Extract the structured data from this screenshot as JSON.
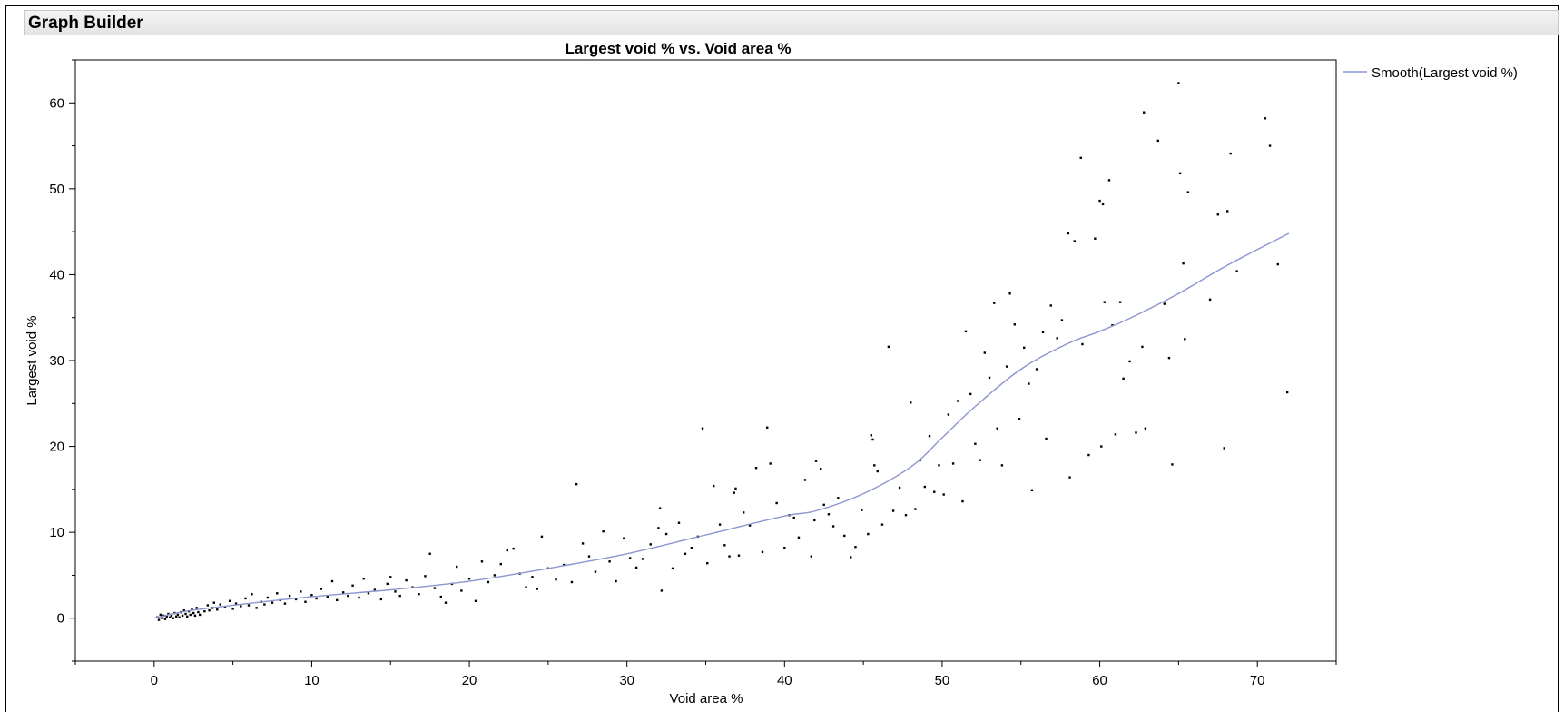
{
  "window": {
    "title": "Graph Builder"
  },
  "colors": {
    "smooth": "#8c96d0",
    "points": "#000000",
    "axis": "#000000"
  },
  "chart_data": {
    "type": "scatter",
    "title": "Largest void % vs. Void area %",
    "xlabel": "Void area %",
    "ylabel": "Largest void %",
    "xlim": [
      -5,
      75
    ],
    "ylim": [
      -5,
      65
    ],
    "xticks": [
      0,
      10,
      20,
      30,
      40,
      50,
      60,
      70
    ],
    "yticks": [
      0,
      10,
      20,
      30,
      40,
      50,
      60
    ],
    "legend": {
      "placement": "top-right",
      "entries": [
        "Smooth(Largest void %)"
      ]
    },
    "series": [
      {
        "name": "Smooth(Largest void %)",
        "kind": "line",
        "x": [
          0,
          2,
          5,
          10,
          15,
          20,
          25,
          30,
          35,
          40,
          42,
          45,
          48,
          50,
          52,
          55,
          58,
          60,
          62,
          65,
          68,
          72
        ],
        "y": [
          0,
          0.8,
          1.5,
          2.5,
          3.3,
          4.3,
          5.8,
          7.5,
          9.7,
          11.9,
          12.5,
          14.5,
          17.6,
          21,
          24.5,
          29,
          32,
          33.4,
          35,
          37.8,
          41,
          44.8
        ]
      },
      {
        "name": "points",
        "kind": "scatter",
        "points": [
          [
            0.2,
            0.1
          ],
          [
            0.3,
            -0.2
          ],
          [
            0.4,
            0.4
          ],
          [
            0.5,
            0.0
          ],
          [
            0.6,
            0.3
          ],
          [
            0.7,
            -0.1
          ],
          [
            0.8,
            0.2
          ],
          [
            0.9,
            0.5
          ],
          [
            1.0,
            0.1
          ],
          [
            1.1,
            0.3
          ],
          [
            1.2,
            0.0
          ],
          [
            1.3,
            0.6
          ],
          [
            1.4,
            0.2
          ],
          [
            1.5,
            0.4
          ],
          [
            1.6,
            0.1
          ],
          [
            1.7,
            0.7
          ],
          [
            1.8,
            0.3
          ],
          [
            1.9,
            0.9
          ],
          [
            2.0,
            0.5
          ],
          [
            2.1,
            0.2
          ],
          [
            2.2,
            0.8
          ],
          [
            2.3,
            0.4
          ],
          [
            2.4,
            1.0
          ],
          [
            2.5,
            0.6
          ],
          [
            2.6,
            0.3
          ],
          [
            2.7,
            1.2
          ],
          [
            2.8,
            0.7
          ],
          [
            2.9,
            0.4
          ],
          [
            3.0,
            1.1
          ],
          [
            3.2,
            0.8
          ],
          [
            3.4,
            1.5
          ],
          [
            3.5,
            0.9
          ],
          [
            3.7,
            1.2
          ],
          [
            3.8,
            1.8
          ],
          [
            4.0,
            1.0
          ],
          [
            4.2,
            1.6
          ],
          [
            4.5,
            1.3
          ],
          [
            4.8,
            2.0
          ],
          [
            5.0,
            1.1
          ],
          [
            5.2,
            1.7
          ],
          [
            5.5,
            1.4
          ],
          [
            5.8,
            2.3
          ],
          [
            6.0,
            1.5
          ],
          [
            6.2,
            2.8
          ],
          [
            6.5,
            1.2
          ],
          [
            6.8,
            1.9
          ],
          [
            7.0,
            1.6
          ],
          [
            7.2,
            2.4
          ],
          [
            7.5,
            1.8
          ],
          [
            7.8,
            2.9
          ],
          [
            8.0,
            2.1
          ],
          [
            8.3,
            1.7
          ],
          [
            8.6,
            2.6
          ],
          [
            9.0,
            2.2
          ],
          [
            9.3,
            3.1
          ],
          [
            9.6,
            1.9
          ],
          [
            10.0,
            2.7
          ],
          [
            10.3,
            2.3
          ],
          [
            10.6,
            3.4
          ],
          [
            11.0,
            2.5
          ],
          [
            11.3,
            4.3
          ],
          [
            11.6,
            2.1
          ],
          [
            12.0,
            3.0
          ],
          [
            12.3,
            2.6
          ],
          [
            12.6,
            3.8
          ],
          [
            13.0,
            2.4
          ],
          [
            13.3,
            4.6
          ],
          [
            13.6,
            2.9
          ],
          [
            14.0,
            3.3
          ],
          [
            14.4,
            2.2
          ],
          [
            14.8,
            4.0
          ],
          [
            15.0,
            4.8
          ],
          [
            15.3,
            3.1
          ],
          [
            15.6,
            2.6
          ],
          [
            16.0,
            4.4
          ],
          [
            16.4,
            3.6
          ],
          [
            16.8,
            2.8
          ],
          [
            17.2,
            4.9
          ],
          [
            17.5,
            7.5
          ],
          [
            17.8,
            3.5
          ],
          [
            18.2,
            2.5
          ],
          [
            18.5,
            1.8
          ],
          [
            18.9,
            4.0
          ],
          [
            19.2,
            6.0
          ],
          [
            19.5,
            3.2
          ],
          [
            20.0,
            4.6
          ],
          [
            20.4,
            2.0
          ],
          [
            20.8,
            6.6
          ],
          [
            21.2,
            4.2
          ],
          [
            21.6,
            5.0
          ],
          [
            22.0,
            6.3
          ],
          [
            22.4,
            7.9
          ],
          [
            22.8,
            8.1
          ],
          [
            23.2,
            5.2
          ],
          [
            23.6,
            3.6
          ],
          [
            24.0,
            4.8
          ],
          [
            24.3,
            3.4
          ],
          [
            24.6,
            9.5
          ],
          [
            25.0,
            5.8
          ],
          [
            25.5,
            4.5
          ],
          [
            26.0,
            6.2
          ],
          [
            26.5,
            4.2
          ],
          [
            26.8,
            15.6
          ],
          [
            27.2,
            8.7
          ],
          [
            27.6,
            7.2
          ],
          [
            28.0,
            5.4
          ],
          [
            28.5,
            10.1
          ],
          [
            28.9,
            6.6
          ],
          [
            29.3,
            4.3
          ],
          [
            29.8,
            9.3
          ],
          [
            30.2,
            7.0
          ],
          [
            30.6,
            5.9
          ],
          [
            31.0,
            6.9
          ],
          [
            31.5,
            8.6
          ],
          [
            32.0,
            10.5
          ],
          [
            32.1,
            12.8
          ],
          [
            32.2,
            3.2
          ],
          [
            32.5,
            9.8
          ],
          [
            32.9,
            5.8
          ],
          [
            33.3,
            11.1
          ],
          [
            33.7,
            7.5
          ],
          [
            34.1,
            8.2
          ],
          [
            34.5,
            9.5
          ],
          [
            34.8,
            22.1
          ],
          [
            35.1,
            6.4
          ],
          [
            35.5,
            15.4
          ],
          [
            35.9,
            10.9
          ],
          [
            36.2,
            8.5
          ],
          [
            36.5,
            7.2
          ],
          [
            36.8,
            14.6
          ],
          [
            36.9,
            15.1
          ],
          [
            37.1,
            7.3
          ],
          [
            37.4,
            12.3
          ],
          [
            37.8,
            10.8
          ],
          [
            38.2,
            17.5
          ],
          [
            38.6,
            7.7
          ],
          [
            38.9,
            22.2
          ],
          [
            39.1,
            18.0
          ],
          [
            39.5,
            13.4
          ],
          [
            40.0,
            8.2
          ],
          [
            40.3,
            12.0
          ],
          [
            40.6,
            11.7
          ],
          [
            40.9,
            9.4
          ],
          [
            41.3,
            16.1
          ],
          [
            41.7,
            7.2
          ],
          [
            41.9,
            11.4
          ],
          [
            42.0,
            18.3
          ],
          [
            42.3,
            17.4
          ],
          [
            42.5,
            13.2
          ],
          [
            42.8,
            12.1
          ],
          [
            43.1,
            10.7
          ],
          [
            43.4,
            14.0
          ],
          [
            43.8,
            9.6
          ],
          [
            44.2,
            7.1
          ],
          [
            44.5,
            8.3
          ],
          [
            44.9,
            12.6
          ],
          [
            45.3,
            9.8
          ],
          [
            45.5,
            21.3
          ],
          [
            45.6,
            20.8
          ],
          [
            45.7,
            17.8
          ],
          [
            45.9,
            17.1
          ],
          [
            46.2,
            10.9
          ],
          [
            46.6,
            31.6
          ],
          [
            46.9,
            12.5
          ],
          [
            47.3,
            15.2
          ],
          [
            47.7,
            12.0
          ],
          [
            48.0,
            25.1
          ],
          [
            48.3,
            12.7
          ],
          [
            48.6,
            18.4
          ],
          [
            48.9,
            15.3
          ],
          [
            49.2,
            21.2
          ],
          [
            49.5,
            14.7
          ],
          [
            49.8,
            17.8
          ],
          [
            50.1,
            14.4
          ],
          [
            50.4,
            23.7
          ],
          [
            50.7,
            18.0
          ],
          [
            51.0,
            25.3
          ],
          [
            51.3,
            13.6
          ],
          [
            51.5,
            33.4
          ],
          [
            51.8,
            26.1
          ],
          [
            52.1,
            20.3
          ],
          [
            52.4,
            18.4
          ],
          [
            52.7,
            30.9
          ],
          [
            53.0,
            28.0
          ],
          [
            53.3,
            36.7
          ],
          [
            53.5,
            22.1
          ],
          [
            53.8,
            17.8
          ],
          [
            54.1,
            29.3
          ],
          [
            54.3,
            37.8
          ],
          [
            54.6,
            34.2
          ],
          [
            54.9,
            23.2
          ],
          [
            55.2,
            31.5
          ],
          [
            55.5,
            27.3
          ],
          [
            55.7,
            14.9
          ],
          [
            56.0,
            29.0
          ],
          [
            56.4,
            33.3
          ],
          [
            56.6,
            20.9
          ],
          [
            56.9,
            36.4
          ],
          [
            57.3,
            32.6
          ],
          [
            57.6,
            34.7
          ],
          [
            58.0,
            44.8
          ],
          [
            58.1,
            16.4
          ],
          [
            58.4,
            43.9
          ],
          [
            58.8,
            53.6
          ],
          [
            58.9,
            31.9
          ],
          [
            59.3,
            19.0
          ],
          [
            59.7,
            44.2
          ],
          [
            60.0,
            48.6
          ],
          [
            60.1,
            20.0
          ],
          [
            60.3,
            36.8
          ],
          [
            60.6,
            51.0
          ],
          [
            60.8,
            34.1
          ],
          [
            61.0,
            21.4
          ],
          [
            61.3,
            36.8
          ],
          [
            61.5,
            27.9
          ],
          [
            61.9,
            29.9
          ],
          [
            62.3,
            21.6
          ],
          [
            62.7,
            31.6
          ],
          [
            62.8,
            58.9
          ],
          [
            62.9,
            22.1
          ],
          [
            63.7,
            55.6
          ],
          [
            64.1,
            36.6
          ],
          [
            64.4,
            30.3
          ],
          [
            64.6,
            17.9
          ],
          [
            65.0,
            62.3
          ],
          [
            65.1,
            51.8
          ],
          [
            65.3,
            41.3
          ],
          [
            65.4,
            32.5
          ],
          [
            65.6,
            49.6
          ],
          [
            67.0,
            37.1
          ],
          [
            67.5,
            47.0
          ],
          [
            67.9,
            19.8
          ],
          [
            68.3,
            54.1
          ],
          [
            68.7,
            40.4
          ],
          [
            68.1,
            47.4
          ],
          [
            70.5,
            58.2
          ],
          [
            70.8,
            55.0
          ],
          [
            71.3,
            41.2
          ],
          [
            71.9,
            26.3
          ],
          [
            60.2,
            48.2
          ]
        ]
      }
    ]
  }
}
